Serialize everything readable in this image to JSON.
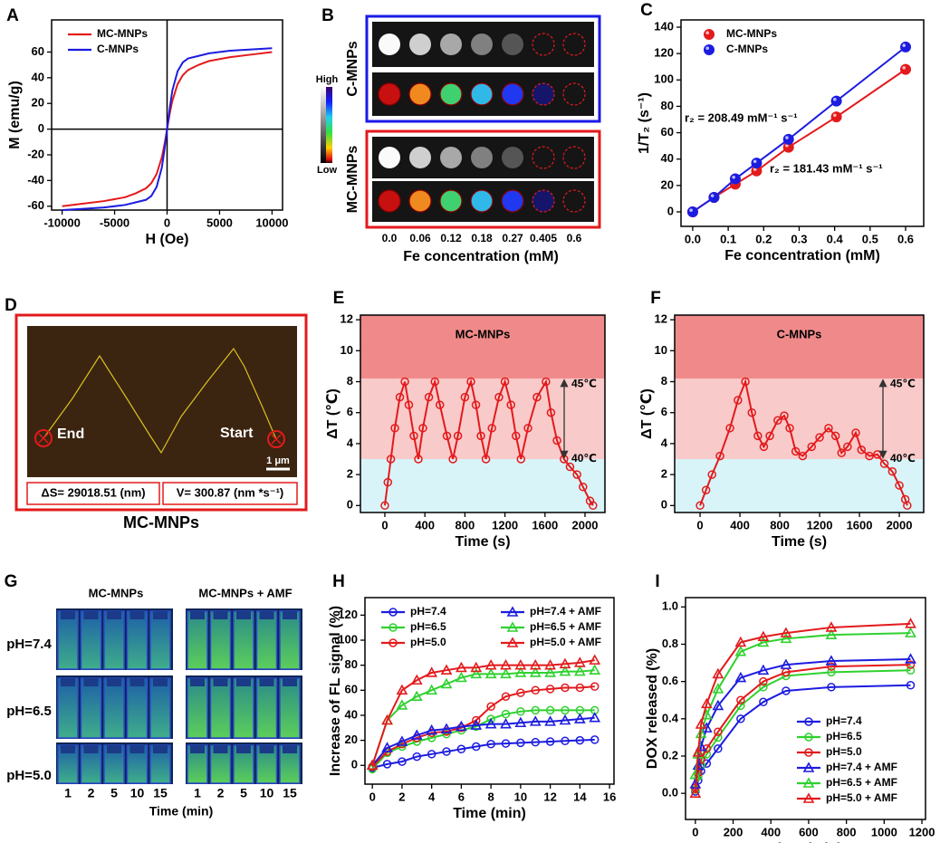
{
  "chart_data": [
    {
      "type": "line",
      "panel": "A",
      "xlabel": "H (Oe)",
      "ylabel": "M (emu/g)",
      "x": [
        -10000,
        -8000,
        -6000,
        -4000,
        -3000,
        -2000,
        -1500,
        -1000,
        -500,
        -250,
        0,
        250,
        500,
        1000,
        1500,
        2000,
        3000,
        4000,
        6000,
        8000,
        10000
      ],
      "series": [
        {
          "name": "MC-MNPs",
          "color": "#e31a1c",
          "values": [
            -60,
            -58,
            -56,
            -53,
            -50,
            -46,
            -42,
            -35,
            -22,
            -12,
            0,
            12,
            22,
            35,
            42,
            46,
            50,
            53,
            56,
            58,
            60
          ]
        },
        {
          "name": "C-MNPs",
          "color": "#1c1ce0",
          "values": [
            -63,
            -62,
            -61,
            -59,
            -57,
            -55,
            -52,
            -45,
            -30,
            -16,
            0,
            16,
            30,
            45,
            52,
            55,
            57,
            59,
            61,
            62,
            63
          ]
        }
      ],
      "xlim": [
        -11000,
        11000
      ],
      "xticks": [
        -10000,
        -5000,
        0,
        5000,
        10000
      ],
      "ylim": [
        -63,
        85
      ],
      "yticks": [
        -60,
        -40,
        -20,
        0,
        20,
        40,
        60
      ],
      "zero_axes": true,
      "legend": "upper left"
    },
    {
      "type": "mri",
      "panel": "B",
      "rows": [
        "C-MNPs",
        "MC-MNPs"
      ],
      "colorbar_labels": [
        "High",
        "Low"
      ],
      "categories": [
        "0.0",
        "0.06",
        "0.12",
        "0.18",
        "0.27",
        "0.405",
        "0.6"
      ],
      "xlabel": "Fe concentration (mM)"
    },
    {
      "type": "scatter-line",
      "panel": "C",
      "xlabel": "Fe concentration (mM)",
      "ylabel": "1/T₂ (s⁻¹)",
      "x": [
        0,
        0.06,
        0.12,
        0.18,
        0.27,
        0.405,
        0.6
      ],
      "series": [
        {
          "name": "MC-MNPs",
          "color": "#e31a1c",
          "marker": "ball",
          "values": [
            0,
            11,
            21,
            31,
            49,
            72,
            108
          ]
        },
        {
          "name": "C-MNPs",
          "color": "#1c1ce0",
          "marker": "ball",
          "values": [
            0,
            11,
            25,
            37,
            55,
            84,
            125
          ]
        }
      ],
      "annotations": [
        {
          "text": "r₂ = 208.49 mM⁻¹ s⁻¹",
          "color": "#1c1ce0"
        },
        {
          "text": "r₂ = 181.43 mM⁻¹ s⁻¹",
          "color": "#e31a1c"
        }
      ],
      "xlim": [
        -0.033,
        0.651
      ],
      "xticks": [
        {
          "value": 0,
          "label": "0.0"
        },
        0.1,
        0.2,
        0.3,
        0.4,
        0.5,
        0.6
      ],
      "ylim": [
        -11,
        145.5
      ],
      "yticks": [
        0,
        20,
        40,
        60,
        80,
        100,
        120,
        140
      ],
      "legend": "upper left"
    },
    {
      "type": "trajectory",
      "panel": "D",
      "end": "End",
      "start": "Start",
      "scale": "1 μm",
      "displacement": "ΔS= 29018.51 (nm)",
      "velocity": "V= 300.87 (nm *s⁻¹)",
      "caption": "MC-MNPs"
    },
    {
      "type": "line",
      "panel": "E",
      "label": "MC-MNPs",
      "temp_labels": [
        "45℃",
        "40℃"
      ],
      "xlabel": "Time (s)",
      "ylabel": "ΔT (℃)",
      "x": [
        0,
        30,
        60,
        100,
        150,
        200,
        240,
        290,
        335,
        380,
        440,
        500,
        550,
        620,
        680,
        730,
        800,
        860,
        910,
        960,
        1010,
        1070,
        1140,
        1200,
        1260,
        1310,
        1360,
        1430,
        1520,
        1610,
        1660,
        1720,
        1790,
        1850,
        1920,
        1980,
        2050,
        2080
      ],
      "values": [
        0,
        1.5,
        3,
        5,
        7,
        8,
        6.5,
        4.5,
        3,
        5,
        7,
        8,
        6.5,
        4.5,
        3,
        4.5,
        7,
        8,
        6.5,
        4.5,
        3,
        5,
        7,
        8,
        6.5,
        4.5,
        3,
        5,
        7,
        8,
        6,
        4.2,
        3,
        2.5,
        2,
        1.2,
        0.3,
        0
      ],
      "color": "#e31a1c",
      "marker": "circle",
      "zones": [
        {
          "to": 3,
          "color": "#d8f4f8"
        },
        {
          "to": 8.2,
          "color": "#f9caca"
        },
        {
          "to": 12.3,
          "color": "#f08a8a"
        }
      ],
      "xlim": [
        -244,
        2199
      ],
      "xticks": [
        0,
        400,
        800,
        1200,
        1600,
        2000
      ],
      "ylim": [
        -0.45,
        12.3
      ],
      "yticks": [
        0,
        2,
        4,
        6,
        8,
        10,
        12
      ]
    },
    {
      "type": "line",
      "panel": "F",
      "label": "C-MNPs",
      "temp_labels": [
        "45℃",
        "40℃"
      ],
      "xlabel": "Time (s)",
      "ylabel": "ΔT (℃)",
      "x": [
        0,
        60,
        120,
        200,
        300,
        380,
        455,
        520,
        580,
        640,
        700,
        780,
        845,
        900,
        960,
        1030,
        1120,
        1200,
        1290,
        1360,
        1420,
        1480,
        1563,
        1620,
        1700,
        1780,
        1850,
        1930,
        2000,
        2060,
        2080
      ],
      "values": [
        0,
        1,
        2,
        3.2,
        5,
        6.8,
        8,
        6,
        4.5,
        3.8,
        4.5,
        5.5,
        5.8,
        5,
        3.5,
        3.2,
        3.8,
        4.4,
        5,
        4.5,
        3.4,
        3.8,
        4.7,
        3.6,
        3.2,
        3.3,
        2.7,
        2.2,
        1.3,
        0.4,
        0
      ],
      "color": "#e31a1c",
      "marker": "circle",
      "zones": [
        {
          "to": 3,
          "color": "#d8f4f8"
        },
        {
          "to": 8.2,
          "color": "#f9caca"
        },
        {
          "to": 12.3,
          "color": "#f08a8a"
        }
      ],
      "xlim": [
        -255,
        2245
      ],
      "xticks": [
        0,
        400,
        800,
        1200,
        1600,
        2000
      ],
      "ylim": [
        -0.45,
        12.3
      ],
      "yticks": [
        0,
        2,
        4,
        6,
        8,
        10,
        12
      ]
    },
    {
      "type": "photo",
      "panel": "G",
      "groups": [
        "MC-MNPs",
        "MC-MNPs + AMF"
      ],
      "rows": [
        "pH=7.4",
        "pH=6.5",
        "pH=5.0"
      ],
      "times": [
        "1",
        "2",
        "5",
        "10",
        "15"
      ],
      "xlabel": "Time (min)"
    },
    {
      "type": "line",
      "panel": "H",
      "xlabel": "Time (min)",
      "ylabel": "Increase of FL signal (%)",
      "x": [
        0,
        1,
        2,
        3,
        4,
        5,
        6,
        7,
        8,
        9,
        10,
        11,
        12,
        13,
        14,
        15
      ],
      "series": [
        {
          "name": "pH=7.4",
          "color": "#1c1ce0",
          "marker": "circle",
          "values": [
            -2,
            1,
            3,
            7,
            9,
            11,
            13,
            15,
            17,
            17.5,
            18,
            18.5,
            19,
            19.5,
            20,
            20.5
          ]
        },
        {
          "name": "pH=6.5",
          "color": "#2fd12f",
          "marker": "circle",
          "values": [
            -3,
            10,
            15,
            19,
            22,
            25,
            28,
            31,
            37,
            41,
            43,
            44,
            44,
            44,
            44,
            44
          ]
        },
        {
          "name": "pH=5.0",
          "color": "#e31a1c",
          "marker": "circle",
          "values": [
            -1,
            11,
            17,
            22,
            26,
            27,
            30,
            36,
            47,
            55,
            58,
            60,
            61,
            62,
            62,
            63
          ]
        },
        {
          "name": "pH=7.4 + AMF",
          "color": "#1c1ce0",
          "marker": "triangle",
          "values": [
            0,
            14,
            19,
            24,
            28,
            29,
            31,
            32,
            33,
            33,
            34,
            35,
            35,
            36,
            37,
            38
          ]
        },
        {
          "name": "pH=6.5 + AMF",
          "color": "#2fd12f",
          "marker": "triangle",
          "values": [
            0,
            36,
            48,
            55,
            60,
            65,
            70,
            73,
            73,
            73,
            74,
            74,
            74,
            75,
            75,
            76
          ]
        },
        {
          "name": "pH=5.0 + AMF",
          "color": "#e31a1c",
          "marker": "triangle",
          "values": [
            0,
            36,
            60,
            68,
            74,
            76,
            78,
            78,
            80,
            80,
            80,
            80,
            80,
            81,
            82,
            84
          ]
        }
      ],
      "xlim": [
        -0.5,
        16.3
      ],
      "xticks": [
        0,
        2,
        4,
        6,
        8,
        10,
        12,
        14,
        16
      ],
      "ylim": [
        -15,
        134
      ],
      "yticks": [
        0,
        20,
        40,
        60,
        80,
        100,
        120
      ],
      "legend": "upper left",
      "legend_columns": 2
    },
    {
      "type": "line",
      "panel": "I",
      "xlabel": "Time (min)",
      "ylabel": "DOX released (%)",
      "x": [
        0,
        15,
        30,
        60,
        120,
        240,
        360,
        480,
        720,
        1140
      ],
      "series": [
        {
          "name": "pH=7.4",
          "color": "#1c1ce0",
          "marker": "circle",
          "values": [
            0.01,
            0.07,
            0.12,
            0.16,
            0.24,
            0.4,
            0.49,
            0.55,
            0.57,
            0.58
          ]
        },
        {
          "name": "pH=6.5",
          "color": "#2fd12f",
          "marker": "circle",
          "values": [
            0.02,
            0.09,
            0.15,
            0.21,
            0.3,
            0.47,
            0.57,
            0.63,
            0.65,
            0.66
          ]
        },
        {
          "name": "pH=5.0",
          "color": "#e31a1c",
          "marker": "circle",
          "values": [
            0.03,
            0.11,
            0.18,
            0.24,
            0.33,
            0.5,
            0.6,
            0.65,
            0.68,
            0.69
          ]
        },
        {
          "name": "pH=7.4 + AMF",
          "color": "#1c1ce0",
          "marker": "triangle",
          "values": [
            0.05,
            0.15,
            0.25,
            0.35,
            0.47,
            0.62,
            0.66,
            0.69,
            0.71,
            0.72
          ]
        },
        {
          "name": "pH=6.5 + AMF",
          "color": "#2fd12f",
          "marker": "triangle",
          "values": [
            0.1,
            0.21,
            0.32,
            0.42,
            0.56,
            0.76,
            0.81,
            0.83,
            0.85,
            0.86
          ]
        },
        {
          "name": "pH=5.0 + AMF",
          "color": "#e31a1c",
          "marker": "triangle",
          "values": [
            0,
            0.22,
            0.37,
            0.48,
            0.64,
            0.81,
            0.84,
            0.86,
            0.89,
            0.91
          ]
        }
      ],
      "xlim": [
        -52,
        1219
      ],
      "xticks": [
        0,
        200,
        400,
        600,
        800,
        1000,
        1200
      ],
      "ylim": [
        -0.14,
        1.05
      ],
      "yticks": [
        {
          "value": 0,
          "label": "0.0"
        },
        0.2,
        0.4,
        0.6,
        0.8,
        {
          "value": 1,
          "label": "1.0"
        }
      ],
      "legend": "lower right"
    }
  ]
}
